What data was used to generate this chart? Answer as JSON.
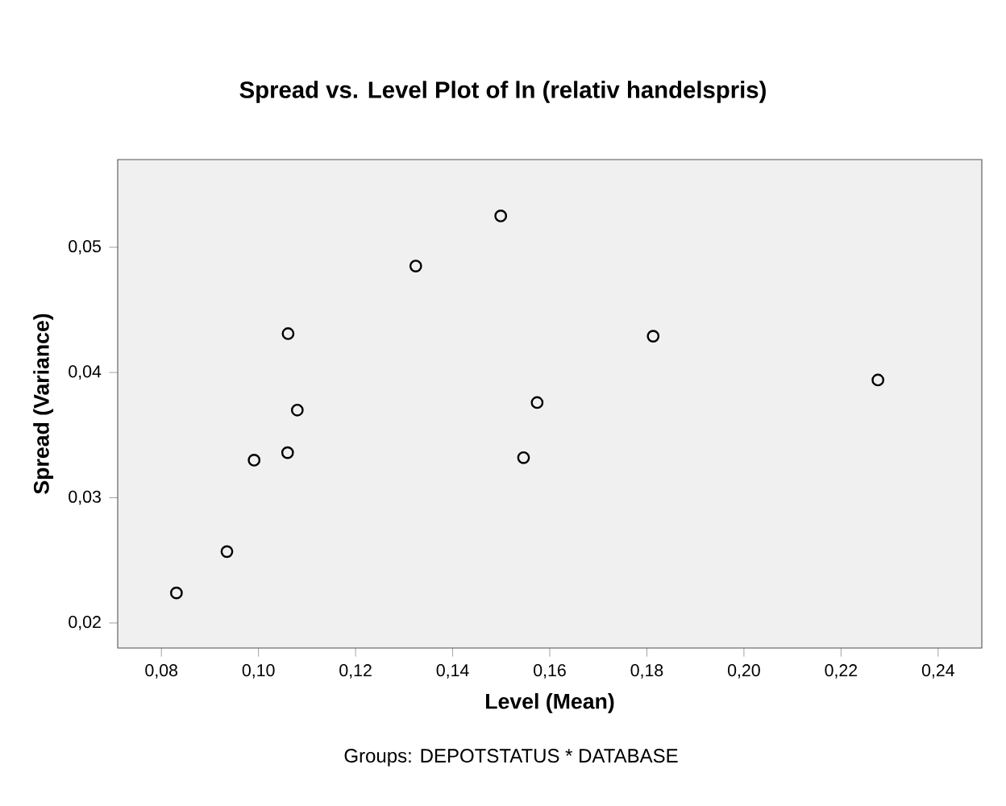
{
  "chart_data": {
    "type": "scatter",
    "title": "Spread vs. Level Plot of ln (relativ handelspris)",
    "xlabel": "Level (Mean)",
    "ylabel": "Spread (Variance)",
    "annotations": [
      "Groups: DEPOTSTATUS * DATABASE"
    ],
    "xlim": [
      0.071,
      0.249
    ],
    "ylim": [
      0.018,
      0.057
    ],
    "xticks": [
      {
        "value": 0.08,
        "label": "0,08"
      },
      {
        "value": 0.1,
        "label": "0,10"
      },
      {
        "value": 0.12,
        "label": "0,12"
      },
      {
        "value": 0.14,
        "label": "0,14"
      },
      {
        "value": 0.16,
        "label": "0,16"
      },
      {
        "value": 0.18,
        "label": "0,18"
      },
      {
        "value": 0.2,
        "label": "0,20"
      },
      {
        "value": 0.22,
        "label": "0,22"
      },
      {
        "value": 0.24,
        "label": "0,24"
      }
    ],
    "yticks": [
      {
        "value": 0.02,
        "label": "0,02"
      },
      {
        "value": 0.03,
        "label": "0,03"
      },
      {
        "value": 0.04,
        "label": "0,04"
      },
      {
        "value": 0.05,
        "label": "0,05"
      }
    ],
    "marker": "circle",
    "series": [
      {
        "color": "#000000",
        "x": [
          0.0831,
          0.0935,
          0.0991,
          0.106,
          0.1061,
          0.108,
          0.1324,
          0.1499,
          0.1574,
          0.1546,
          0.1813,
          0.2276
        ],
        "values": [
          0.0224,
          0.0257,
          0.033,
          0.0336,
          0.0431,
          0.037,
          0.0485,
          0.0525,
          0.0376,
          0.0332,
          0.0429,
          0.0394
        ]
      }
    ]
  }
}
